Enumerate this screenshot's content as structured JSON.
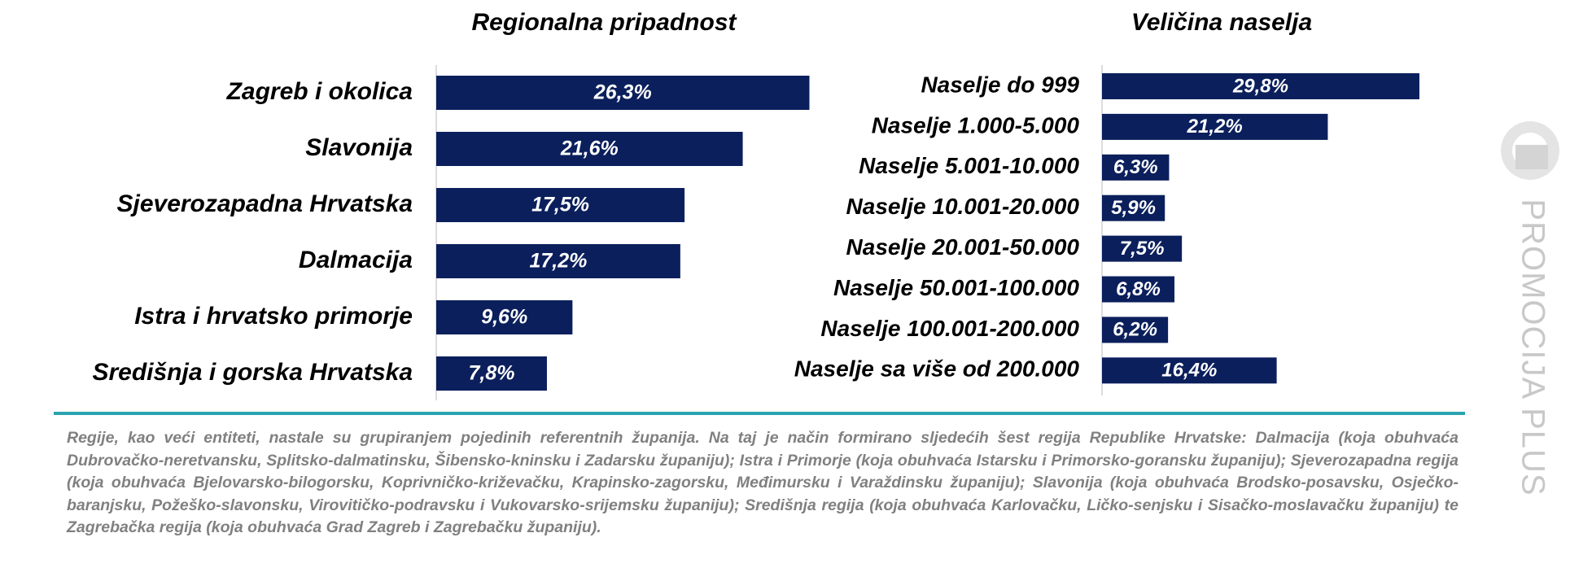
{
  "chart_data": [
    {
      "type": "hbar",
      "title": "Regionalna pripadnost",
      "categories": [
        "Zagreb i okolica",
        "Slavonija",
        "Sjeverozapadna Hrvatska",
        "Dalmacija",
        "Istra i hrvatsko  primorje",
        "Središnja i gorska Hrvatska"
      ],
      "values": [
        26.3,
        21.6,
        17.5,
        17.2,
        9.6,
        7.8
      ],
      "value_labels": [
        "26,3%",
        "21,6%",
        "17,5%",
        "17,2%",
        "9,6%",
        "7,8%"
      ],
      "color": "#0b1f5c",
      "xlim": [
        0,
        30
      ]
    },
    {
      "type": "hbar",
      "title": "Veličina naselja",
      "categories": [
        "Naselje do 999",
        "Naselje 1.000-5.000",
        "Naselje 5.001-10.000",
        "Naselje 10.001-20.000",
        "Naselje 20.001-50.000",
        "Naselje 50.001-100.000",
        "Naselje 100.001-200.000",
        "Naselje sa više od 200.000"
      ],
      "values": [
        29.8,
        21.2,
        6.3,
        5.9,
        7.5,
        6.8,
        6.2,
        16.4
      ],
      "value_labels": [
        "29,8%",
        "21,2%",
        "6,3%",
        "5,9%",
        "7,5%",
        "6,8%",
        "6,2%",
        "16,4%"
      ],
      "color": "#0b1f5c",
      "xlim": [
        0,
        35
      ]
    }
  ],
  "footnote": "Regije, kao veći entiteti, nastale su grupiranjem pojedinih referentnih županija. Na taj je način formirano sljedećih šest regija Republike Hrvatske: Dalmacija (koja obuhvaća Dubrovačko-neretvansku, Splitsko-dalmatinsku, Šibensko-kninsku i Zadarsku županiju); Istra i Primorje (koja obuhvaća Istarsku i Primorsko-goransku županiju); Sjeverozapadna regija (koja obuhvaća Bjelovarsko-bilogorsku, Koprivničko-križevačku, Krapinsko-zagorsku, Međimursku i Varaždinsku županiju); Slavonija (koja obuhvaća Brodsko-posavsku, Osječko-baranjsku, Požeško-slavonsku, Virovitičko-podravsku i Vukovarsko-srijemsku županiju); Središnja regija (koja obuhvaća Karlovačku, Ličko-senjsku i Sisačko-moslavačku županiju) te Zagrebačka regija (koja obuhvaća Grad Zagreb i Zagrebačku županiju).",
  "logo": "PROMOCIJA PLUS"
}
